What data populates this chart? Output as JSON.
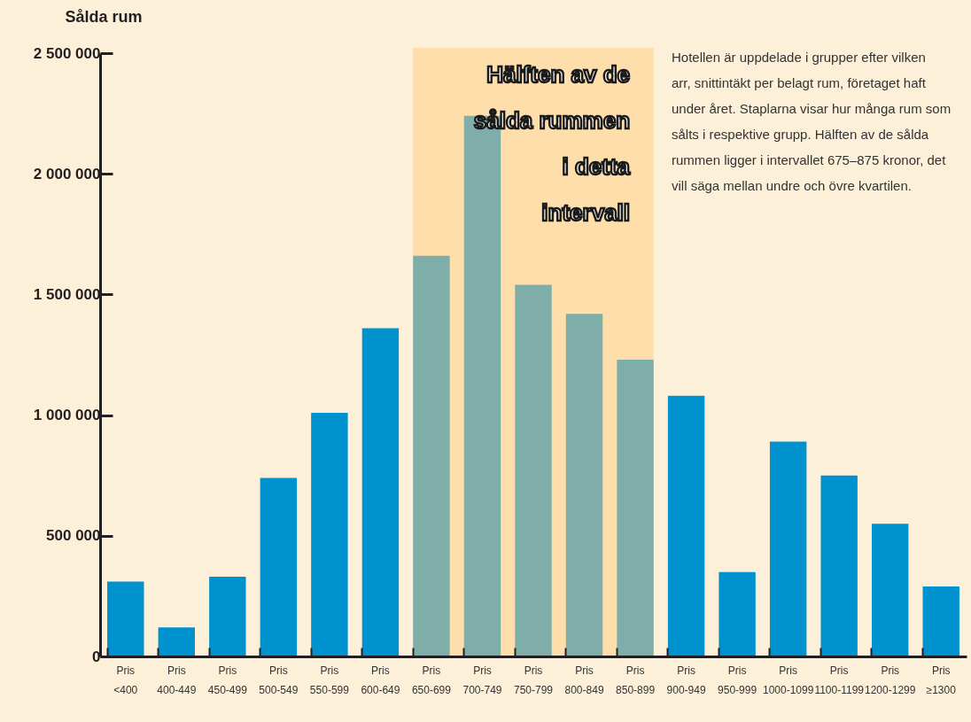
{
  "chart_data": {
    "type": "bar",
    "ylabel": "Sålda rum",
    "categories": [
      "Pris <400",
      "Pris 400-449",
      "Pris 450-499",
      "Pris 500-549",
      "Pris 550-599",
      "Pris 600-649",
      "Pris 650-699",
      "Pris 700-749",
      "Pris 750-799",
      "Pris 800-849",
      "Pris 850-899",
      "Pris 900-949",
      "Pris 950-999",
      "Pris 1000-1099",
      "Pris 1100-1199",
      "Pris 1200-1299",
      "Pris ≥1300"
    ],
    "values": [
      310000,
      120000,
      330000,
      740000,
      1010000,
      1360000,
      1660000,
      2240000,
      1540000,
      1420000,
      1230000,
      1080000,
      350000,
      890000,
      750000,
      550000,
      290000
    ],
    "colors": [
      "#0091cf",
      "#0091cf",
      "#0091cf",
      "#0091cf",
      "#0091cf",
      "#0091cf",
      "#7fadaa",
      "#7fadaa",
      "#7fadaa",
      "#7fadaa",
      "#7fadaa",
      "#0091cf",
      "#0091cf",
      "#0091cf",
      "#0091cf",
      "#0091cf",
      "#0091cf"
    ],
    "ylim": [
      0,
      2500000
    ],
    "yticks": [
      {
        "value": 0,
        "label": "0"
      },
      {
        "value": 500000,
        "label": "500 000"
      },
      {
        "value": 1000000,
        "label": "1 000 000"
      },
      {
        "value": 1500000,
        "label": "1 500 000"
      },
      {
        "value": 2000000,
        "label": "2 000 000"
      },
      {
        "value": 2500000,
        "label": "2 500 000"
      }
    ],
    "grid": false,
    "bands": [
      {
        "axis": "x",
        "from": "Pris 650-699",
        "to": "Pris 850-899",
        "label": "Hälften av de sålda rummen i detta intervall",
        "color": "#fedeaa"
      }
    ],
    "annotations": [
      "Hotellen är uppdelade i grupper efter vilken arr, snittintäkt per belagt rum, företaget haft under året. Staplarna visar hur många rum som sålts i respektive grupp. Hälften av de sålda rummen ligger i intervallet 675–875 kronor, det vill säga mellan undre och övre kvartilen."
    ]
  }
}
